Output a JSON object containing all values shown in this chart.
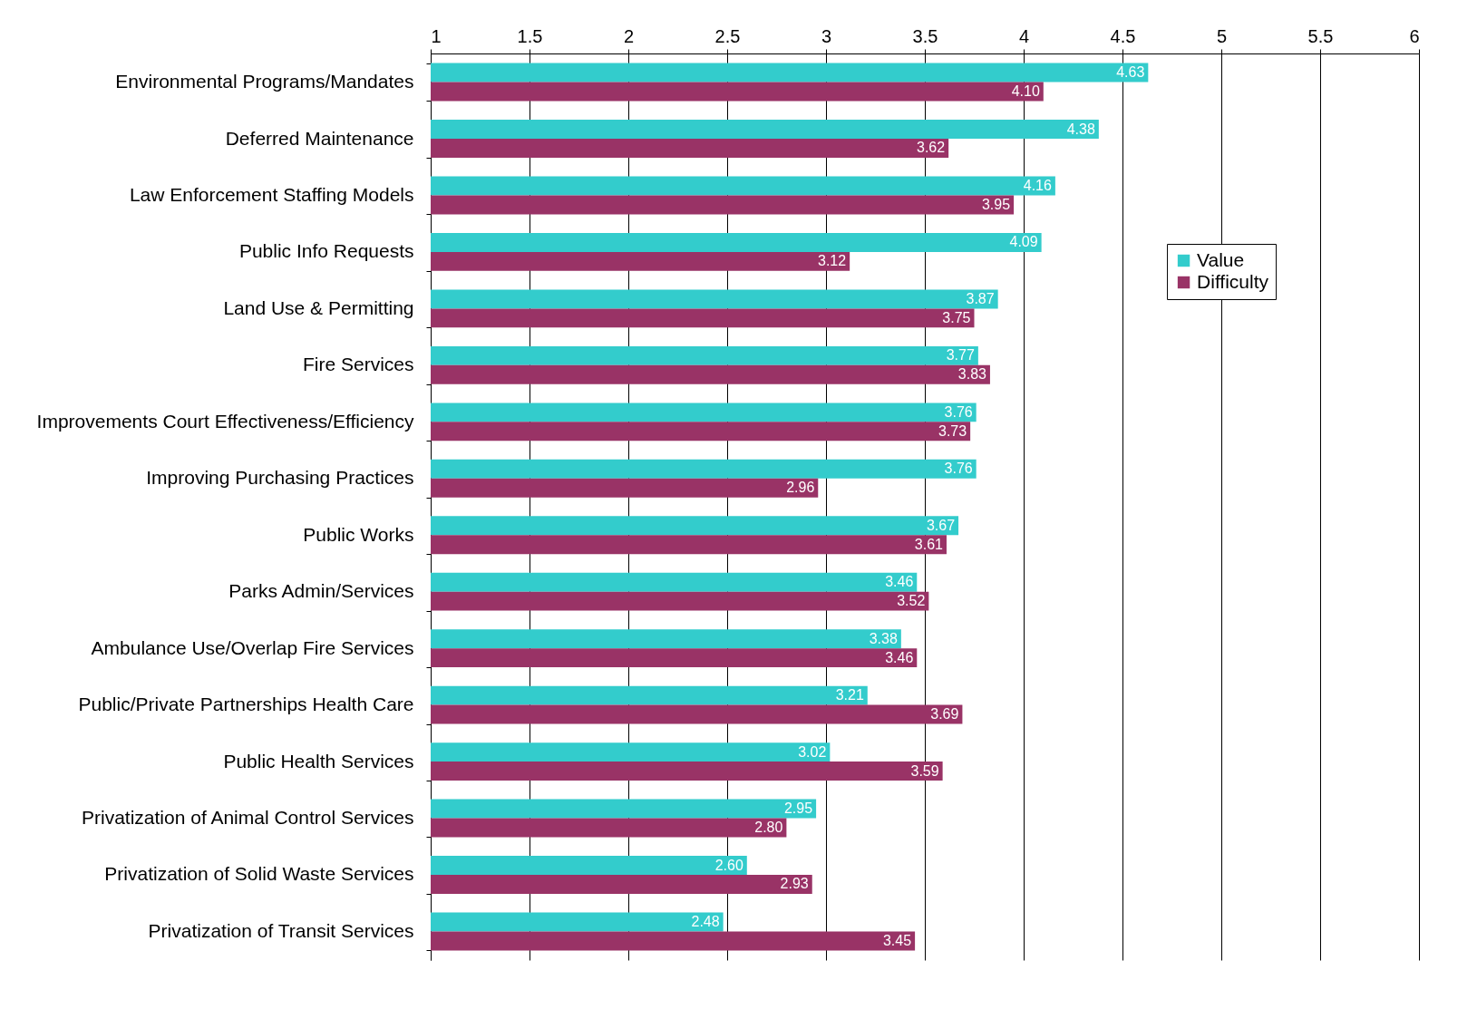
{
  "chart_data": {
    "type": "bar",
    "orientation": "horizontal",
    "categories": [
      "Environmental Programs/Mandates",
      "Deferred Maintenance",
      "Law Enforcement Staffing Models",
      "Public Info Requests",
      "Land Use & Permitting",
      "Fire Services",
      "Improvements Court Effectiveness/Efficiency",
      "Improving Purchasing Practices",
      "Public Works",
      "Parks Admin/Services",
      "Ambulance Use/Overlap Fire Services",
      "Public/Private Partnerships Health Care",
      "Public Health Services",
      "Privatization of Animal Control Services",
      "Privatization of Solid Waste Services",
      "Privatization of Transit Services"
    ],
    "series": [
      {
        "name": "Value",
        "color": "#33cccc",
        "values": [
          4.63,
          4.38,
          4.16,
          4.09,
          3.87,
          3.77,
          3.76,
          3.76,
          3.67,
          3.46,
          3.38,
          3.21,
          3.02,
          2.95,
          2.6,
          2.48
        ],
        "value_labels": [
          "4.63",
          "4.38",
          "4.16",
          "4.09",
          "3.87",
          "3.77",
          "3.76",
          "3.76",
          "3.67",
          "3.46",
          "3.38",
          "3.21",
          "3.02",
          "2.95",
          "2.60",
          "2.48"
        ]
      },
      {
        "name": "Difficulty",
        "color": "#993366",
        "values": [
          4.1,
          3.62,
          3.95,
          3.12,
          3.75,
          3.83,
          3.73,
          2.96,
          3.61,
          3.52,
          3.46,
          3.69,
          3.59,
          2.8,
          2.93,
          3.45
        ],
        "value_labels": [
          "4.10",
          "3.62",
          "3.95",
          "3.12",
          "3.75",
          "3.83",
          "3.73",
          "2.96",
          "3.61",
          "3.52",
          "3.46",
          "3.69",
          "3.59",
          "2.80",
          "2.93",
          "3.45"
        ]
      }
    ],
    "xlim": [
      1,
      6
    ],
    "xticks": [
      1,
      1.5,
      2,
      2.5,
      3,
      3.5,
      4,
      4.5,
      5,
      5.5,
      6
    ],
    "grid": "x",
    "legend": "right"
  }
}
